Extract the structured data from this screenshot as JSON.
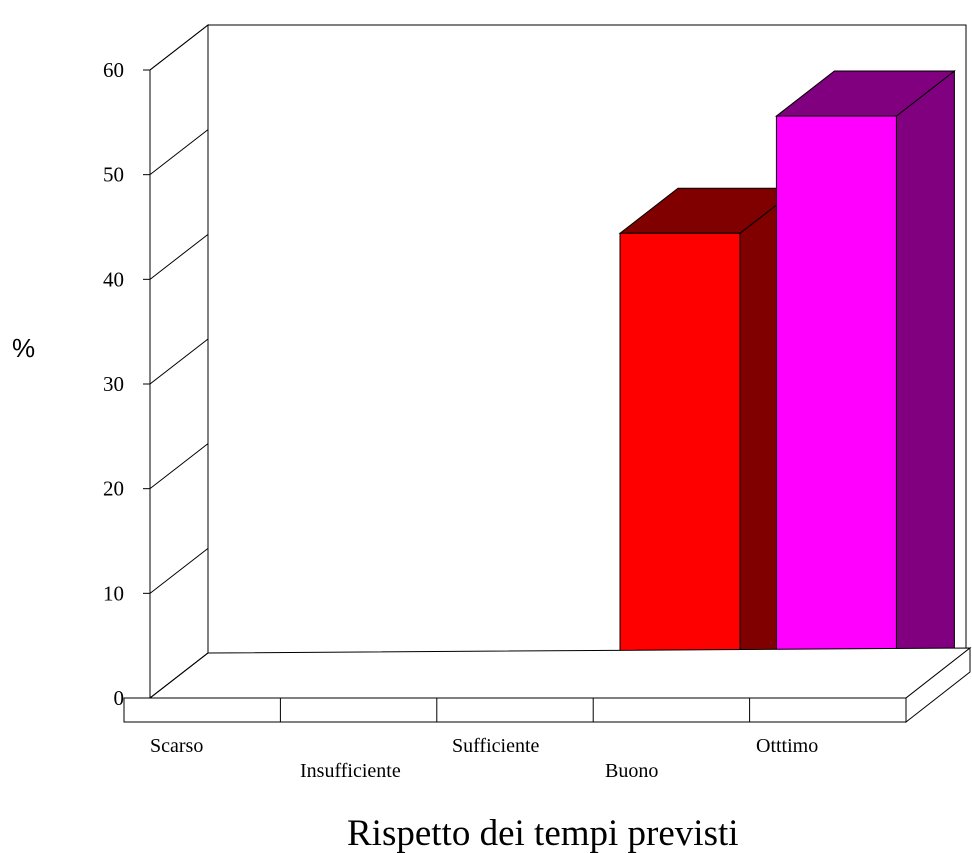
{
  "chart_data": {
    "type": "bar",
    "three_d": true,
    "categories": [
      "Scarso",
      "Insufficiente",
      "Sufficiente",
      "Buono",
      "Otttimo"
    ],
    "values": [
      0,
      0,
      0,
      44.4,
      55.6
    ],
    "colors": [
      "#000080",
      "#008000",
      "#008080",
      "#ff0000",
      "#ff00ff"
    ],
    "side_colors": [
      "#000040",
      "#004000",
      "#004040",
      "#800000",
      "#800080"
    ],
    "title": "",
    "xlabel": "Rispetto dei tempi previsti",
    "ylabel": "%",
    "ylim": [
      0,
      60
    ],
    "yticks": [
      0,
      10,
      20,
      30,
      40,
      50,
      60
    ],
    "grid": false,
    "legend": "none"
  }
}
